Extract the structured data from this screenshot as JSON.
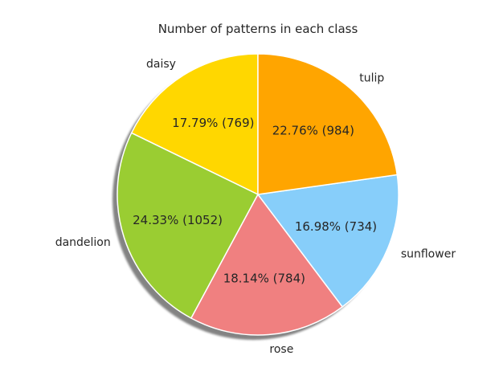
{
  "chart_data": {
    "type": "pie",
    "title": "Number of patterns in each class",
    "shadow": true,
    "start_angle_deg": 90,
    "direction": "counterclockwise",
    "slices": [
      {
        "label": "daisy",
        "value": 769,
        "percent_label": "17.79%  (769)",
        "color": "#FFD700"
      },
      {
        "label": "dandelion",
        "value": 1052,
        "percent_label": "24.33%  (1052)",
        "color": "#9ACD32"
      },
      {
        "label": "rose",
        "value": 784,
        "percent_label": "18.14%  (784)",
        "color": "#F08080"
      },
      {
        "label": "sunflower",
        "value": 734,
        "percent_label": "16.98%  (734)",
        "color": "#87CEFA"
      },
      {
        "label": "tulip",
        "value": 984,
        "percent_label": "22.76%  (984)",
        "color": "#FFA500"
      }
    ]
  }
}
